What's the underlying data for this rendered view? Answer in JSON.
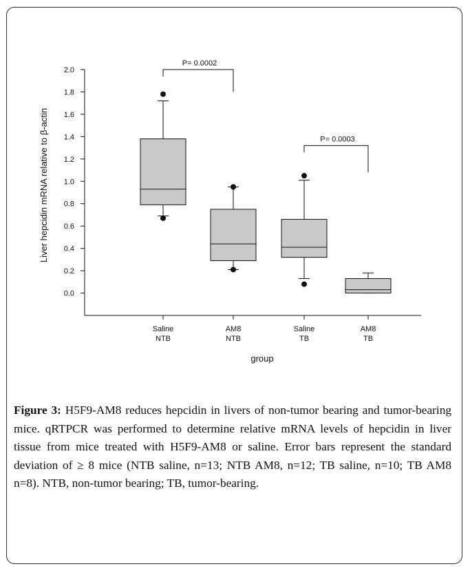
{
  "chart_data": {
    "type": "box",
    "ylabel": "Liver hepcidin mRNA relative to β-actin",
    "xlabel": "group",
    "ylim": [
      -0.2,
      2.0
    ],
    "y_ticks": [
      "2.0",
      "1.8",
      "1.6",
      "1.4",
      "1.2",
      "1.0",
      "0.8",
      "0.6",
      "0.4",
      "0.2",
      "0.0"
    ],
    "y_tick_values": [
      2.0,
      1.8,
      1.6,
      1.4,
      1.2,
      1.0,
      0.8,
      0.6,
      0.4,
      0.2,
      0.0
    ],
    "categories": [
      {
        "line1": "Saline",
        "line2": "NTB"
      },
      {
        "line1": "AM8",
        "line2": "NTB"
      },
      {
        "line1": "Saline",
        "line2": "TB"
      },
      {
        "line1": "AM8",
        "line2": "TB"
      }
    ],
    "boxes": [
      {
        "q1": 0.79,
        "median": 0.93,
        "q3": 1.38,
        "whisker_low": 0.69,
        "whisker_high": 1.72,
        "outliers": [
          0.67,
          1.78
        ]
      },
      {
        "q1": 0.29,
        "median": 0.44,
        "q3": 0.75,
        "whisker_low": 0.21,
        "whisker_high": 0.95,
        "outliers": [
          0.21,
          0.95
        ]
      },
      {
        "q1": 0.32,
        "median": 0.41,
        "q3": 0.66,
        "whisker_low": 0.13,
        "whisker_high": 1.01,
        "outliers": [
          0.08,
          1.05
        ]
      },
      {
        "q1": 0.0,
        "median": 0.03,
        "q3": 0.13,
        "whisker_low": 0.0,
        "whisker_high": 0.18,
        "outliers": []
      }
    ],
    "annotations": [
      {
        "text": "P= 0.0002",
        "from": 0,
        "to": 1,
        "y": 2.0,
        "drop_to": 1.8
      },
      {
        "text": "P= 0.0003",
        "from": 2,
        "to": 3,
        "y": 1.32,
        "drop_to": 1.08
      }
    ],
    "colors": {
      "box_fill": "#c9c9c9",
      "line": "#111111"
    }
  },
  "caption": {
    "label": "Figure 3:",
    "text": " H5F9-AM8 reduces hepcidin in livers of non-tumor bearing and tumor-bearing mice. qRTPCR was performed to determine relative mRNA levels of hepcidin in liver tissue from mice treated with H5F9-AM8 or saline. Error bars represent the standard deviation of ≥ 8 mice (NTB saline, n=13; NTB AM8, n=12; TB saline, n=10; TB AM8 n=8). NTB, non-tumor bearing; TB, tumor-bearing."
  }
}
